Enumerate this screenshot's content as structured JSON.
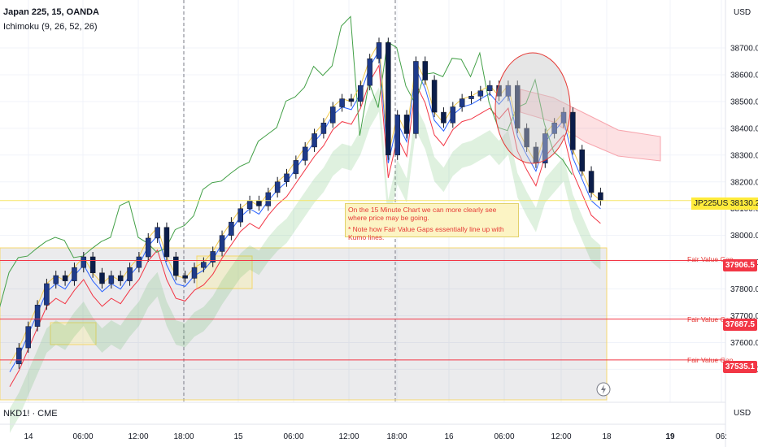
{
  "header": {
    "title": "Japan 225, 15, OANDA",
    "indicator": "Ichimoku (9, 26, 52, 26)"
  },
  "currency_top": "USD",
  "currency_bottom": "USD",
  "sub_chart_title": "NKD1! · CME",
  "price_axis": [
    "38700.0",
    "38600.0",
    "38500.0",
    "38400.0",
    "38300.0",
    "38200.0",
    "38100.0",
    "38000.0",
    "37900.0",
    "37800.0",
    "37700.0",
    "37600.0",
    "37500.0"
  ],
  "time_axis": [
    "14",
    "06:00",
    "12:00",
    "18:00",
    "15",
    "06:00",
    "12:00",
    "18:00",
    "16",
    "06:00",
    "12:00",
    "18",
    "19",
    "06:"
  ],
  "current_price": {
    "symbol": "JP225USD",
    "value": "38130.2"
  },
  "fair_value_gaps": [
    {
      "label": "Fair Value Gap",
      "price": "37906.5"
    },
    {
      "label": "Fair Value Gap",
      "price": "37687.5"
    },
    {
      "label": "Fair Value Gap",
      "price": "37535.1"
    }
  ],
  "annotation": {
    "line1": "On the 15 Minute Chart we can more clearly see where price may be going.",
    "line2": "* Note how Fair Value Gaps essentially line up with Kumo lines."
  },
  "chart_data": {
    "type": "candlestick",
    "symbol": "Japan 225",
    "timeframe": "15",
    "ylim": [
      37450,
      38850
    ],
    "close_series": [
      [
        0,
        37520
      ],
      [
        1,
        37580
      ],
      [
        2,
        37660
      ],
      [
        3,
        37740
      ],
      [
        4,
        37820
      ],
      [
        5,
        37850
      ],
      [
        6,
        37830
      ],
      [
        7,
        37880
      ],
      [
        8,
        37920
      ],
      [
        9,
        37860
      ],
      [
        10,
        37820
      ],
      [
        11,
        37850
      ],
      [
        12,
        37830
      ],
      [
        13,
        37880
      ],
      [
        14,
        37920
      ],
      [
        15,
        37990
      ],
      [
        16,
        38030
      ],
      [
        17,
        37920
      ],
      [
        18,
        37850
      ],
      [
        19,
        37840
      ],
      [
        20,
        37880
      ],
      [
        21,
        37900
      ],
      [
        22,
        37940
      ],
      [
        23,
        38000
      ],
      [
        24,
        38050
      ],
      [
        25,
        38100
      ],
      [
        26,
        38130
      ],
      [
        27,
        38110
      ],
      [
        28,
        38160
      ],
      [
        29,
        38200
      ],
      [
        30,
        38230
      ],
      [
        31,
        38280
      ],
      [
        32,
        38330
      ],
      [
        33,
        38380
      ],
      [
        34,
        38420
      ],
      [
        35,
        38480
      ],
      [
        36,
        38510
      ],
      [
        37,
        38500
      ],
      [
        38,
        38560
      ],
      [
        39,
        38660
      ],
      [
        40,
        38720
      ],
      [
        41,
        38300
      ],
      [
        42,
        38450
      ],
      [
        43,
        38380
      ],
      [
        44,
        38650
      ],
      [
        45,
        38580
      ],
      [
        46,
        38460
      ],
      [
        47,
        38420
      ],
      [
        48,
        38480
      ],
      [
        49,
        38510
      ],
      [
        50,
        38520
      ],
      [
        51,
        38540
      ],
      [
        52,
        38560
      ],
      [
        53,
        38520
      ],
      [
        54,
        38560
      ],
      [
        55,
        38400
      ],
      [
        56,
        38330
      ],
      [
        57,
        38270
      ],
      [
        58,
        38380
      ],
      [
        59,
        38420
      ],
      [
        60,
        38460
      ],
      [
        61,
        38320
      ],
      [
        62,
        38240
      ],
      [
        63,
        38160
      ],
      [
        64,
        38130
      ]
    ],
    "ichimoku": {
      "tenkan": 9,
      "kijun": 26,
      "senkou_b": 52,
      "displacement": 26
    },
    "fair_value_gap_prices": [
      37906.5,
      37687.5,
      37535.1
    ],
    "x_ticks": [
      "14",
      "06:00",
      "12:00",
      "18:00",
      "15",
      "06:00",
      "12:00",
      "18:00",
      "16",
      "06:00",
      "12:00",
      "18",
      "19",
      "06:"
    ]
  }
}
